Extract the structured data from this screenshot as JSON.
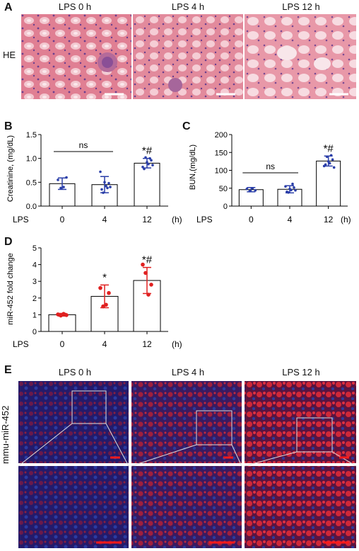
{
  "figure": {
    "panel_labels": [
      "A",
      "B",
      "C",
      "D",
      "E"
    ],
    "panel_a": {
      "row_label": "HE",
      "columns": [
        "LPS 0 h",
        "LPS 4 h",
        "LPS 12 h"
      ]
    },
    "panel_e": {
      "row_label": "mmu-miR-452",
      "columns": [
        "LPS 0 h",
        "LPS 4 h",
        "LPS 12 h"
      ]
    },
    "colors": {
      "he_tissue": "#e28a9c",
      "he_bright": "#f2c6cf",
      "fluor_red": "#c0203a",
      "fluor_blue": "#1a2a8a",
      "scale_bar_white": "#ffffff",
      "scale_bar_red": "#ff1a1a",
      "point_blue": "#2a3ea8",
      "point_red": "#e02020"
    },
    "icons": [
      "scale-bar",
      "zoom-inset-box"
    ]
  },
  "chart_data": [
    {
      "panel": "B",
      "type": "bar",
      "xlabel": "LPS",
      "xunit": "(h)",
      "ylabel": "Creatinine, (mg/dL)",
      "categories": [
        "0",
        "4",
        "12"
      ],
      "values": [
        0.47,
        0.45,
        0.9
      ],
      "errors": [
        0.12,
        0.17,
        0.1
      ],
      "ylim": [
        0,
        1.5
      ],
      "yticks": [
        "0.0",
        "0.5",
        "1.0",
        "1.5"
      ],
      "points": [
        [
          0.55,
          0.38,
          0.4,
          0.6
        ],
        [
          0.72,
          0.28,
          0.42,
          0.48,
          0.35,
          0.5,
          0.38,
          0.4
        ],
        [
          0.82,
          1.02,
          0.88,
          0.96,
          0.78,
          0.92,
          1.0,
          0.86
        ]
      ],
      "point_color": "#2a3ea8",
      "annotations": [
        {
          "text": "ns",
          "from": "0",
          "to": "4"
        },
        {
          "text": "*#",
          "at": "12"
        }
      ]
    },
    {
      "panel": "C",
      "type": "bar",
      "xlabel": "LPS",
      "xunit": "(h)",
      "ylabel": "BUN,(mg/dL)",
      "categories": [
        "0",
        "4",
        "12"
      ],
      "values": [
        46,
        47,
        126
      ],
      "errors": [
        6,
        10,
        14
      ],
      "ylim": [
        0,
        200
      ],
      "yticks": [
        "0",
        "50",
        "100",
        "150",
        "200"
      ],
      "points": [
        [
          48,
          42,
          50,
          44
        ],
        [
          55,
          38,
          45,
          52,
          40,
          48,
          62,
          44
        ],
        [
          112,
          138,
          120,
          130,
          116,
          125,
          142,
          108
        ]
      ],
      "point_color": "#2a3ea8",
      "annotations": [
        {
          "text": "ns",
          "from": "0",
          "to": "4"
        },
        {
          "text": "*#",
          "at": "12"
        }
      ]
    },
    {
      "panel": "D",
      "type": "bar",
      "xlabel": "LPS",
      "xunit": "(h)",
      "ylabel": "miR-452 fold change",
      "categories": [
        "0",
        "4",
        "12"
      ],
      "values": [
        1.0,
        2.1,
        3.05
      ],
      "errors": [
        0.08,
        0.68,
        0.78
      ],
      "ylim": [
        0,
        5
      ],
      "yticks": [
        "0",
        "1",
        "2",
        "3",
        "4",
        "5"
      ],
      "points": [
        [
          1.02,
          0.95,
          1.05,
          0.98
        ],
        [
          2.6,
          1.5,
          1.6,
          2.3
        ],
        [
          4.0,
          3.5,
          2.2,
          2.8
        ]
      ],
      "point_color": "#e02020",
      "annotations": [
        {
          "text": "*",
          "at": "4"
        },
        {
          "text": "*#",
          "at": "12"
        }
      ]
    }
  ]
}
